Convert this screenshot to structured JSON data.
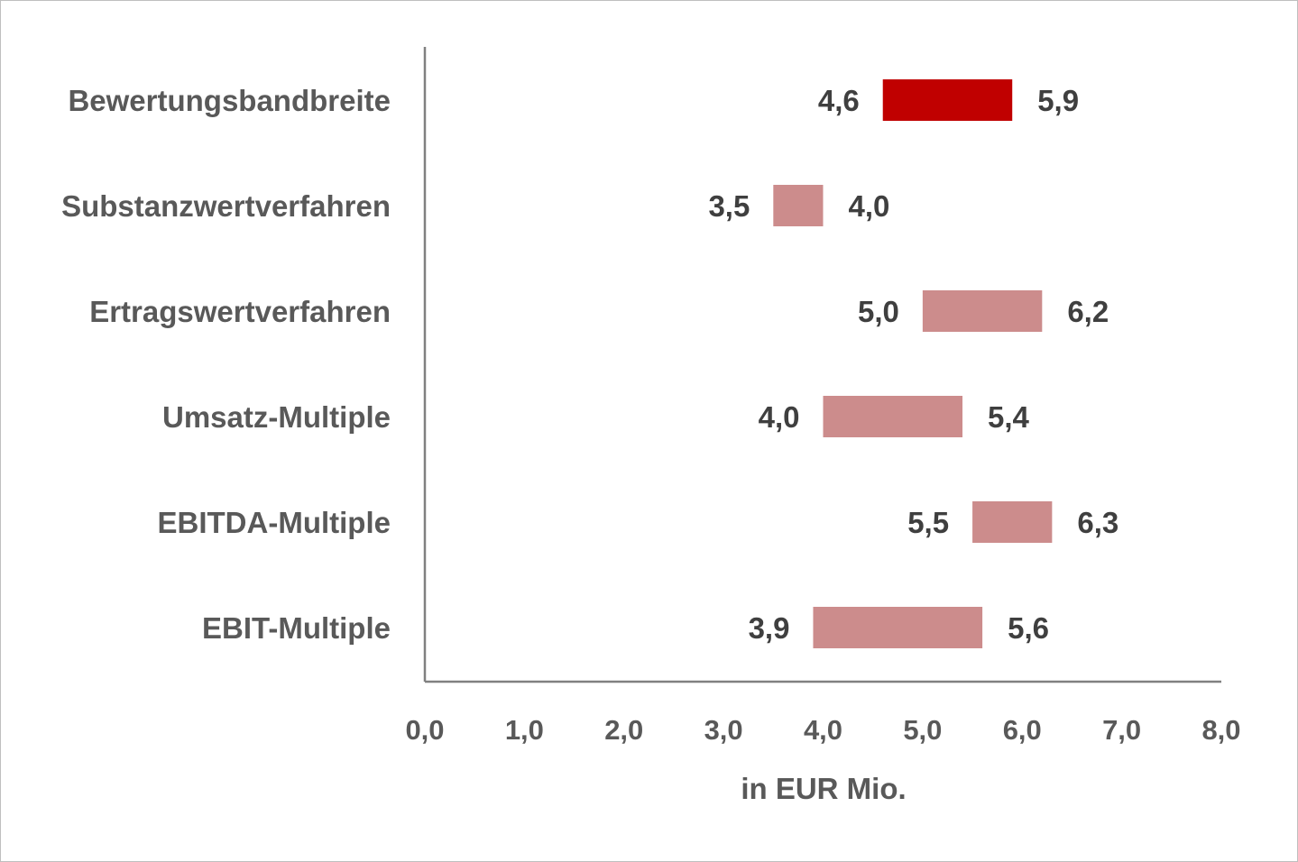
{
  "chart_data": {
    "type": "bar",
    "orientation": "horizontal",
    "style": "floating-range",
    "categories": [
      "Bewertungsbandbreite",
      "Substanzwertverfahren",
      "Ertragswertverfahren",
      "Umsatz-Multiple",
      "EBITDA-Multiple",
      "EBIT-Multiple"
    ],
    "series": [
      {
        "low": [
          4.6,
          3.5,
          5.0,
          4.0,
          5.5,
          3.9
        ],
        "high": [
          5.9,
          4.0,
          6.2,
          5.4,
          6.3,
          5.6
        ],
        "low_labels": [
          "4,6",
          "3,5",
          "5,0",
          "4,0",
          "5,5",
          "3,9"
        ],
        "high_labels": [
          "5,9",
          "4,0",
          "6,2",
          "5,4",
          "6,3",
          "5,6"
        ]
      }
    ],
    "xlabel": "in EUR Mio.",
    "xlim": [
      0,
      8
    ],
    "xticks": [
      0,
      1,
      2,
      3,
      4,
      5,
      6,
      7,
      8
    ],
    "xtick_labels": [
      "0,0",
      "1,0",
      "2,0",
      "3,0",
      "4,0",
      "5,0",
      "6,0",
      "7,0",
      "8,0"
    ],
    "grid": false,
    "legend": "none",
    "colors": {
      "highlight_bar": "#c00000",
      "bar": "#cc8c8c",
      "axis": "#808080"
    }
  }
}
